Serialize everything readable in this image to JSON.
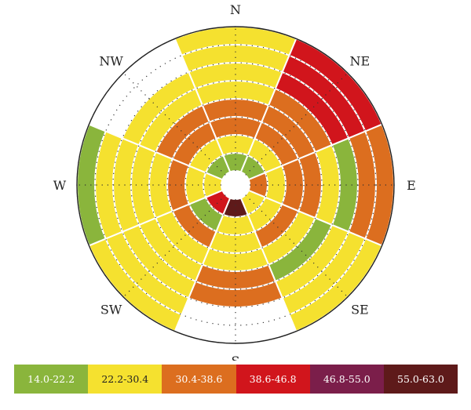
{
  "chart_data": {
    "type": "polar-rose",
    "directions": [
      "N",
      "NE",
      "E",
      "SE",
      "S",
      "SW",
      "W",
      "NW"
    ],
    "rings": 8,
    "legend": [
      {
        "label": "14.0-22.2",
        "color": "#8ab53c",
        "text_color": "#ffffff"
      },
      {
        "label": "22.2-30.4",
        "color": "#f5e12f",
        "text_color": "#222222"
      },
      {
        "label": "30.4-38.6",
        "color": "#dc6e1f",
        "text_color": "#ffffff"
      },
      {
        "label": "38.6-46.8",
        "color": "#d1151c",
        "text_color": "#ffffff"
      },
      {
        "label": "46.8-55.0",
        "color": "#7b1e4a",
        "text_color": "#ffffff"
      },
      {
        "label": "55.0-63.0",
        "color": "#5e1a1a",
        "text_color": "#ffffff"
      }
    ],
    "segments": [
      {
        "dir": 0,
        "classes": [
          0,
          1,
          2,
          2,
          1,
          1,
          1,
          1
        ]
      },
      {
        "dir": 1,
        "classes": [
          0,
          1,
          2,
          2,
          2,
          3,
          3,
          3
        ]
      },
      {
        "dir": 2,
        "classes": [
          2,
          1,
          2,
          2,
          1,
          0,
          2,
          2
        ]
      },
      {
        "dir": 3,
        "classes": [
          1,
          1,
          2,
          1,
          0,
          1,
          1,
          1
        ]
      },
      {
        "dir": 4,
        "classes": [
          5,
          1,
          1,
          1,
          2,
          2
        ]
      },
      {
        "dir": 5,
        "classes": [
          3,
          0,
          2,
          1,
          1,
          1,
          1,
          1
        ]
      },
      {
        "dir": 6,
        "classes": [
          1,
          1,
          2,
          1,
          1,
          1,
          1,
          0
        ]
      },
      {
        "dir": 7,
        "classes": [
          0,
          1,
          2,
          2,
          1,
          1
        ]
      }
    ]
  }
}
